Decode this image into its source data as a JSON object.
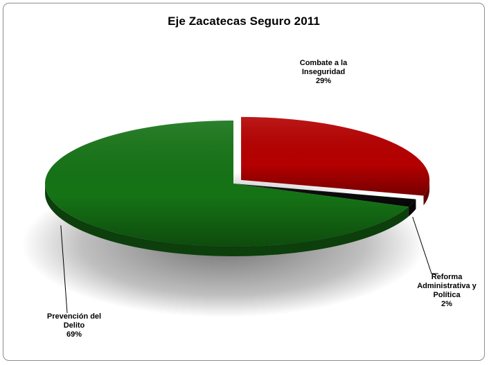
{
  "chart_data": {
    "type": "pie",
    "title": "Eje Zacatecas Seguro 2011",
    "slices": [
      {
        "label": "Combate a la Inseguridad",
        "label_lines": [
          "Combate a la",
          "Inseguridad"
        ],
        "value": 29,
        "value_text": "29%",
        "color": "#b50000"
      },
      {
        "label": "Reforma Administrativa y Política",
        "label_lines": [
          "Reforma",
          "Administrativa y",
          "Política"
        ],
        "value": 2,
        "value_text": "2%",
        "color": "#0a0a0a"
      },
      {
        "label": "Prevención del Delito",
        "label_lines": [
          "Prevención del",
          "Delito"
        ],
        "value": 69,
        "value_text": "69%",
        "color": "#157315"
      }
    ],
    "style": "3d-pie",
    "legend": "none",
    "exploded_slice": "Combate a la Inseguridad"
  }
}
